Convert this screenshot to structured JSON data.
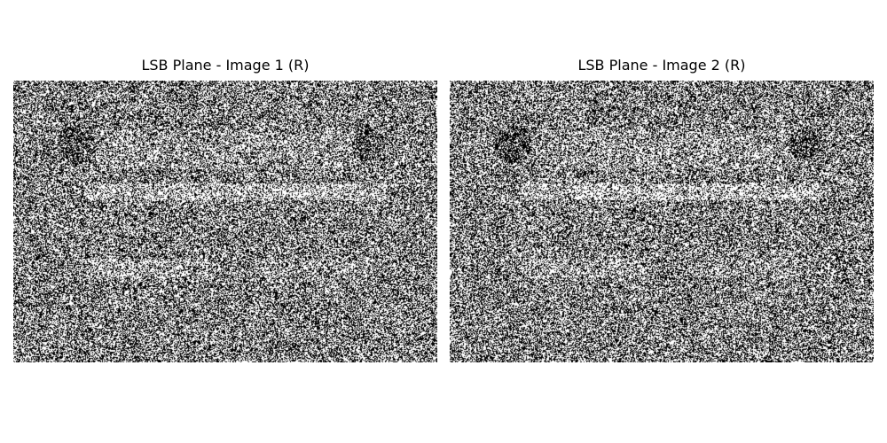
{
  "panels": [
    {
      "title": "LSB Plane - Image 1 (R)"
    },
    {
      "title": "LSB Plane - Image 2 (R)"
    }
  ],
  "colors": {
    "background": "#ffffff",
    "bit_on": "#ffffff",
    "bit_off": "#000000"
  }
}
